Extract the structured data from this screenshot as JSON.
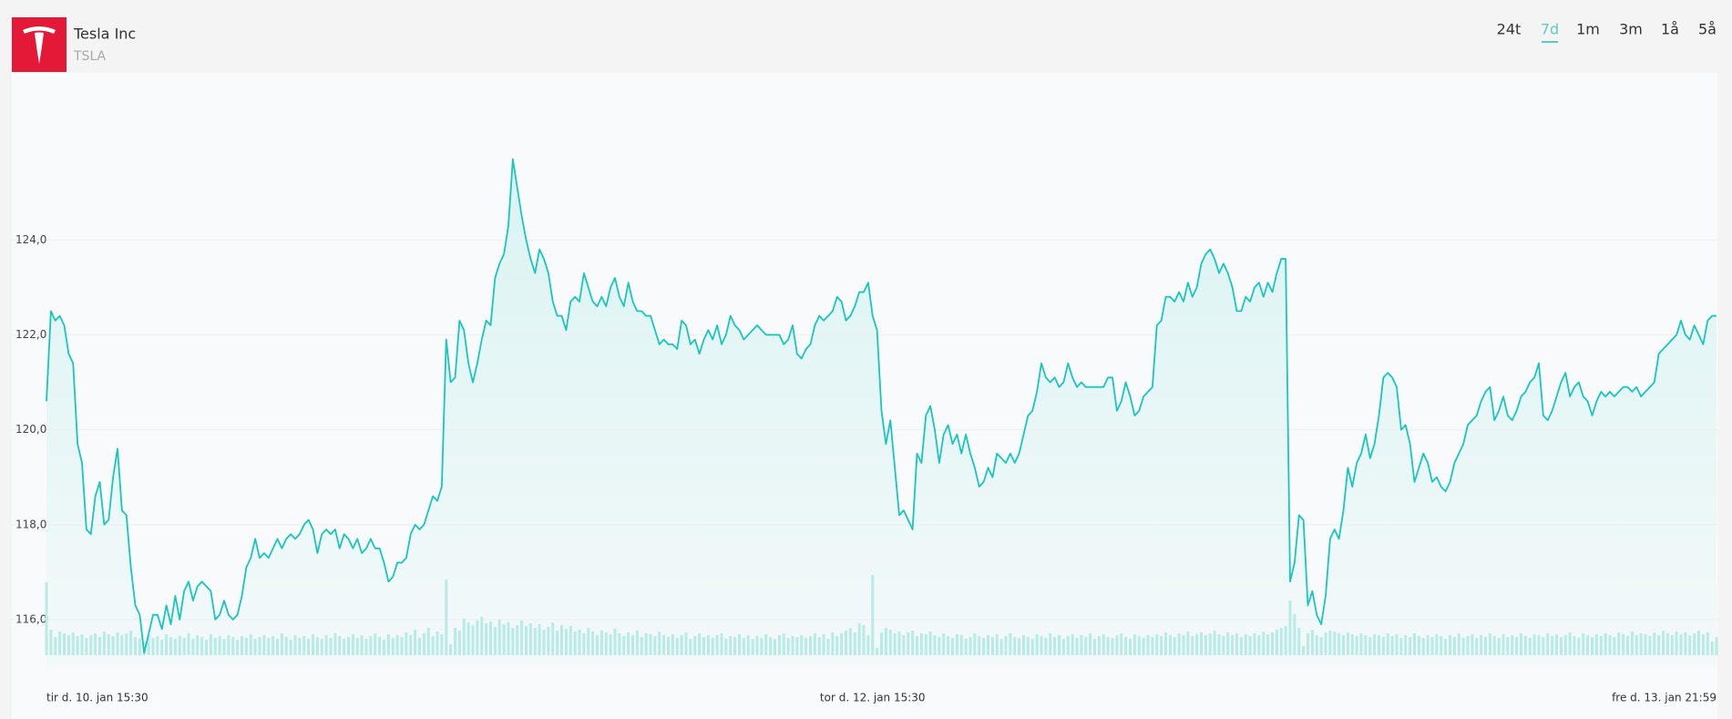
{
  "header": {
    "name": "Tesla Inc",
    "ticker": "TSLA"
  },
  "tabs": [
    "24t",
    "7d",
    "1m",
    "3m",
    "1å",
    "5å"
  ],
  "active_tab": 1,
  "chart_data": {
    "type": "line",
    "categories": [
      "tir d. 10. jan 15:30",
      null,
      null,
      null,
      null,
      null,
      null,
      null,
      null,
      null,
      null,
      null,
      null,
      null,
      null,
      null,
      null,
      null,
      null,
      null,
      null,
      null,
      null,
      null,
      null,
      null,
      null,
      null,
      null,
      null,
      null,
      null,
      null,
      null,
      null,
      null,
      null,
      null,
      null,
      null,
      null,
      null,
      null,
      null,
      null,
      null,
      null,
      null,
      null,
      null,
      null,
      null,
      null,
      null,
      null,
      null,
      null,
      null,
      null,
      null,
      null,
      null,
      null,
      null,
      null,
      null,
      null,
      null,
      null,
      null,
      null,
      null,
      null,
      null,
      null,
      null,
      null,
      null,
      null,
      null,
      null,
      null,
      null,
      null,
      null,
      null,
      null,
      null,
      null,
      null,
      null,
      null,
      null,
      null,
      null,
      null,
      null,
      null,
      null,
      null,
      null,
      null,
      null,
      null,
      null,
      null,
      null,
      null,
      null,
      null,
      null,
      null,
      null,
      null,
      null,
      null,
      null,
      null,
      null,
      null,
      null,
      null,
      null,
      null,
      null,
      null,
      null,
      null,
      null,
      null,
      null,
      null,
      null,
      null,
      null,
      null,
      null,
      null,
      null,
      null,
      null,
      null,
      null,
      null,
      null,
      null,
      null,
      null,
      null,
      null,
      null,
      null,
      null,
      null,
      null,
      null,
      null,
      null,
      null,
      null,
      null,
      null,
      null,
      null,
      null,
      null,
      null,
      null,
      null,
      null,
      null,
      null,
      null,
      null,
      null,
      null,
      null,
      null,
      null,
      null,
      null,
      null,
      null,
      null,
      null,
      null,
      "tor d. 12. jan 15:30",
      null,
      null,
      null,
      null,
      null,
      null,
      null,
      null,
      null,
      null,
      null,
      null,
      null,
      null,
      null,
      null,
      null,
      null,
      null,
      null,
      null,
      null,
      null,
      null,
      null,
      null,
      null,
      null,
      null,
      null,
      null,
      null,
      null,
      null,
      null,
      null,
      null,
      null,
      null,
      null,
      null,
      null,
      null,
      null,
      null,
      null,
      null,
      null,
      null,
      null,
      null,
      null,
      null,
      null,
      null,
      null,
      null,
      null,
      null,
      null,
      null,
      null,
      null,
      null,
      null,
      null,
      null,
      null,
      null,
      null,
      null,
      null,
      null,
      null,
      null,
      null,
      null,
      null,
      null,
      null,
      null,
      null,
      null,
      null,
      null,
      null,
      null,
      null,
      null,
      null,
      null,
      null,
      null,
      null,
      null,
      null,
      null,
      null,
      null,
      null,
      null,
      null,
      null,
      null,
      null,
      null,
      null,
      null,
      null,
      null,
      null,
      null,
      null,
      null,
      null,
      null,
      null,
      null,
      null,
      null,
      null,
      null,
      null,
      null,
      null,
      null,
      null,
      null,
      null,
      null,
      null,
      null,
      null,
      null,
      null,
      null,
      null,
      null,
      null,
      null,
      null,
      null,
      null,
      null,
      null,
      null,
      null,
      null,
      null,
      null,
      null,
      null,
      null,
      null,
      null,
      null,
      null,
      null,
      null,
      null,
      null,
      null,
      null,
      null,
      null,
      null,
      null,
      null,
      null,
      null,
      null,
      null,
      null,
      null,
      null,
      null,
      null,
      null,
      null,
      null,
      null,
      null,
      null,
      null,
      null,
      null,
      null,
      null,
      null,
      "fre d. 13. jan 21:59"
    ],
    "series": [
      {
        "type": "line",
        "color": "#19c6bb",
        "values": [
          120.6,
          122.5,
          122.3,
          122.4,
          122.2,
          121.6,
          121.4,
          119.7,
          119.3,
          117.9,
          117.8,
          118.6,
          118.9,
          118.0,
          118.1,
          119.0,
          119.6,
          118.3,
          118.2,
          117.1,
          116.3,
          116.1,
          115.3,
          115.7,
          116.1,
          116.1,
          115.8,
          116.3,
          115.9,
          116.5,
          116.0,
          116.6,
          116.8,
          116.4,
          116.7,
          116.8,
          116.7,
          116.6,
          116.0,
          116.1,
          116.4,
          116.1,
          116.0,
          116.1,
          116.5,
          117.1,
          117.3,
          117.7,
          117.3,
          117.4,
          117.3,
          117.5,
          117.7,
          117.5,
          117.7,
          117.8,
          117.7,
          117.8,
          118.0,
          118.1,
          117.9,
          117.4,
          117.8,
          117.9,
          117.8,
          117.9,
          117.5,
          117.8,
          117.7,
          117.5,
          117.7,
          117.4,
          117.5,
          117.7,
          117.5,
          117.5,
          117.2,
          116.8,
          116.9,
          117.2,
          117.2,
          117.3,
          117.8,
          118.0,
          117.9,
          118.0,
          118.3,
          118.6,
          118.5,
          118.8,
          121.9,
          121.0,
          121.1,
          122.3,
          122.1,
          121.4,
          121.0,
          121.4,
          121.9,
          122.3,
          122.2,
          123.2,
          123.5,
          123.7,
          124.3,
          125.7,
          125.1,
          124.5,
          124.0,
          123.6,
          123.3,
          123.8,
          123.6,
          123.3,
          122.7,
          122.4,
          122.4,
          122.1,
          122.7,
          122.8,
          122.7,
          123.3,
          123.0,
          122.7,
          122.6,
          122.8,
          122.6,
          123.0,
          123.2,
          122.8,
          122.6,
          123.1,
          122.7,
          122.5,
          122.5,
          122.4,
          122.4,
          122.1,
          121.8,
          121.9,
          121.8,
          121.8,
          121.7,
          122.3,
          122.2,
          121.8,
          121.9,
          121.6,
          121.9,
          122.1,
          121.9,
          122.2,
          121.8,
          122.0,
          122.4,
          122.2,
          122.1,
          121.9,
          122.0,
          122.1,
          122.2,
          122.1,
          122.0,
          122.0,
          122.0,
          122.0,
          121.8,
          121.9,
          122.2,
          121.6,
          121.5,
          121.7,
          121.8,
          122.2,
          122.4,
          122.3,
          122.4,
          122.5,
          122.8,
          122.7,
          122.3,
          122.4,
          122.6,
          122.9,
          122.9,
          123.1,
          122.4,
          122.1,
          120.4,
          119.7,
          120.2,
          119.2,
          118.2,
          118.3,
          118.1,
          117.9,
          119.5,
          119.3,
          120.3,
          120.5,
          120.0,
          119.3,
          119.9,
          120.1,
          119.7,
          119.9,
          119.5,
          119.9,
          119.5,
          119.2,
          118.8,
          118.9,
          119.2,
          119.0,
          119.5,
          119.4,
          119.3,
          119.5,
          119.3,
          119.5,
          119.9,
          120.3,
          120.4,
          120.8,
          121.4,
          121.1,
          121.0,
          121.1,
          120.9,
          121.0,
          121.4,
          121.1,
          120.9,
          121.0,
          120.9,
          120.9,
          120.9,
          120.9,
          120.9,
          121.1,
          121.1,
          120.4,
          120.6,
          121.0,
          120.7,
          120.3,
          120.4,
          120.7,
          120.8,
          120.9,
          122.2,
          122.3,
          122.8,
          122.8,
          122.7,
          122.9,
          122.7,
          123.1,
          122.8,
          123.0,
          123.5,
          123.7,
          123.8,
          123.6,
          123.3,
          123.5,
          123.3,
          123.0,
          122.5,
          122.5,
          122.8,
          122.7,
          123.0,
          123.1,
          122.8,
          123.1,
          122.9,
          123.3,
          123.6,
          123.6,
          116.8,
          117.2,
          118.2,
          118.1,
          116.3,
          116.6,
          116.1,
          115.9,
          116.5,
          117.7,
          117.9,
          117.7,
          118.3,
          119.2,
          118.8,
          119.3,
          119.5,
          119.9,
          119.4,
          119.7,
          120.3,
          121.1,
          121.2,
          121.1,
          120.9,
          120.0,
          120.1,
          119.7,
          118.9,
          119.2,
          119.5,
          119.3,
          118.9,
          119.0,
          118.8,
          118.7,
          118.9,
          119.3,
          119.5,
          119.7,
          120.1,
          120.2,
          120.3,
          120.6,
          120.8,
          120.9,
          120.2,
          120.4,
          120.7,
          120.3,
          120.2,
          120.4,
          120.7,
          120.8,
          121.0,
          121.1,
          121.4,
          120.3,
          120.2,
          120.4,
          120.7,
          121.0,
          121.2,
          120.7,
          120.9,
          121.0,
          120.7,
          120.6,
          120.3,
          120.6,
          120.8,
          120.7,
          120.8,
          120.7,
          120.8,
          120.9,
          120.9,
          120.8,
          120.9,
          120.7,
          120.8,
          120.9,
          121.0,
          121.6,
          121.7,
          121.8,
          121.9,
          122.0,
          122.3,
          122.0,
          121.9,
          122.2,
          122.0,
          121.8,
          122.3,
          122.4,
          122.4
        ]
      },
      {
        "type": "bar",
        "axis": "y2",
        "color": "#b9ebe6",
        "values": [
          80,
          28,
          20,
          26,
          24,
          22,
          25,
          21,
          23,
          19,
          22,
          24,
          20,
          26,
          23,
          21,
          25,
          22,
          24,
          27,
          20,
          18,
          14,
          22,
          19,
          21,
          17,
          23,
          20,
          18,
          21,
          19,
          24,
          18,
          22,
          20,
          17,
          23,
          19,
          21,
          18,
          22,
          20,
          17,
          21,
          19,
          23,
          18,
          20,
          22,
          19,
          21,
          18,
          24,
          20,
          17,
          22,
          19,
          21,
          18,
          23,
          20,
          18,
          22,
          19,
          24,
          21,
          18,
          20,
          23,
          19,
          22,
          18,
          21,
          24,
          20,
          17,
          23,
          19,
          22,
          20,
          25,
          22,
          28,
          19,
          24,
          30,
          21,
          26,
          23,
          83,
          12,
          30,
          27,
          40,
          36,
          33,
          38,
          42,
          35,
          37,
          31,
          39,
          34,
          36,
          30,
          33,
          38,
          32,
          35,
          30,
          34,
          28,
          31,
          36,
          27,
          33,
          29,
          32,
          26,
          28,
          24,
          30,
          26,
          22,
          27,
          25,
          23,
          29,
          24,
          21,
          25,
          22,
          27,
          20,
          24,
          23,
          21,
          26,
          22,
          20,
          23,
          19,
          22,
          25,
          18,
          21,
          24,
          20,
          22,
          19,
          22,
          24,
          18,
          21,
          20,
          23,
          19,
          22,
          18,
          21,
          19,
          23,
          20,
          18,
          22,
          24,
          19,
          21,
          20,
          22,
          19,
          21,
          24,
          20,
          23,
          18,
          25,
          21,
          24,
          27,
          30,
          25,
          35,
          33,
          22,
          88,
          8,
          25,
          30,
          28,
          24,
          26,
          22,
          25,
          27,
          21,
          24,
          23,
          26,
          22,
          20,
          24,
          21,
          19,
          23,
          22,
          18,
          20,
          24,
          21,
          19,
          22,
          20,
          23,
          18,
          21,
          24,
          20,
          19,
          22,
          20,
          18,
          23,
          21,
          19,
          24,
          20,
          22,
          18,
          21,
          23,
          19,
          22,
          20,
          24,
          18,
          21,
          23,
          20,
          19,
          22,
          24,
          20,
          18,
          23,
          21,
          19,
          22,
          20,
          23,
          21,
          25,
          22,
          20,
          24,
          22,
          26,
          21,
          23,
          25,
          22,
          24,
          27,
          23,
          21,
          25,
          22,
          24,
          20,
          23,
          21,
          24,
          22,
          26,
          23,
          25,
          28,
          30,
          32,
          60,
          45,
          30,
          10,
          24,
          28,
          22,
          20,
          25,
          27,
          26,
          24,
          22,
          25,
          23,
          21,
          24,
          22,
          20,
          23,
          22,
          20,
          24,
          21,
          23,
          19,
          22,
          20,
          24,
          21,
          19,
          22,
          20,
          23,
          21,
          18,
          22,
          20,
          24,
          19,
          21,
          23,
          19,
          22,
          20,
          24,
          21,
          19,
          23,
          20,
          22,
          20,
          24,
          21,
          19,
          23,
          22,
          20,
          24,
          21,
          23,
          20,
          22,
          25,
          21,
          19,
          24,
          22,
          20,
          23,
          21,
          24,
          22,
          20,
          25,
          23,
          21,
          26,
          22,
          24,
          23,
          21,
          25,
          22,
          27,
          24,
          22,
          26,
          23,
          25,
          22,
          24,
          27,
          23,
          25,
          15,
          20
        ]
      }
    ],
    "ylim": [
      115,
      127
    ],
    "yticks": [
      {
        "value": 116,
        "label": "116,0"
      },
      {
        "value": 118,
        "label": "118,0"
      },
      {
        "value": 120,
        "label": "120,0"
      },
      {
        "value": 122,
        "label": "122,0"
      },
      {
        "value": 124,
        "label": "124,0"
      }
    ],
    "y2lim": [
      0,
      100
    ],
    "grid": true
  }
}
